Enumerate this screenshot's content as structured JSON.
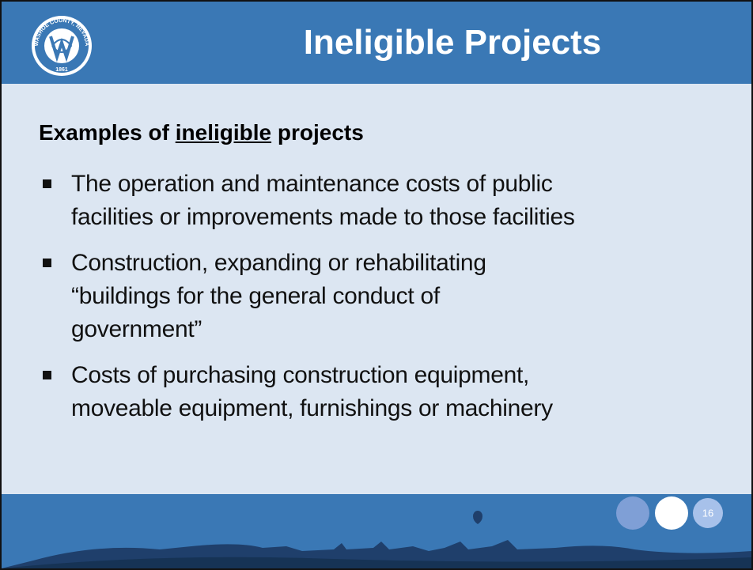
{
  "header": {
    "title": "Ineligible Projects",
    "logo": {
      "arc_text": "WASHOE COUNTY, NEVADA",
      "year": "1861"
    }
  },
  "body": {
    "heading": {
      "before": "Examples of ",
      "emphasis": "ineligible",
      "after": " projects"
    },
    "bullets": [
      {
        "lines": [
          "The operation and maintenance costs of public",
          "facilities or improvements made to those facilities"
        ]
      },
      {
        "lines": [
          "Construction, expanding or rehabilitating",
          "“buildings for the general conduct of",
          "government”"
        ]
      },
      {
        "lines": [
          "Costs of purchasing construction equipment,",
          "moveable equipment, furnishings or machinery"
        ]
      }
    ]
  },
  "footer": {
    "page_number": "16"
  }
}
